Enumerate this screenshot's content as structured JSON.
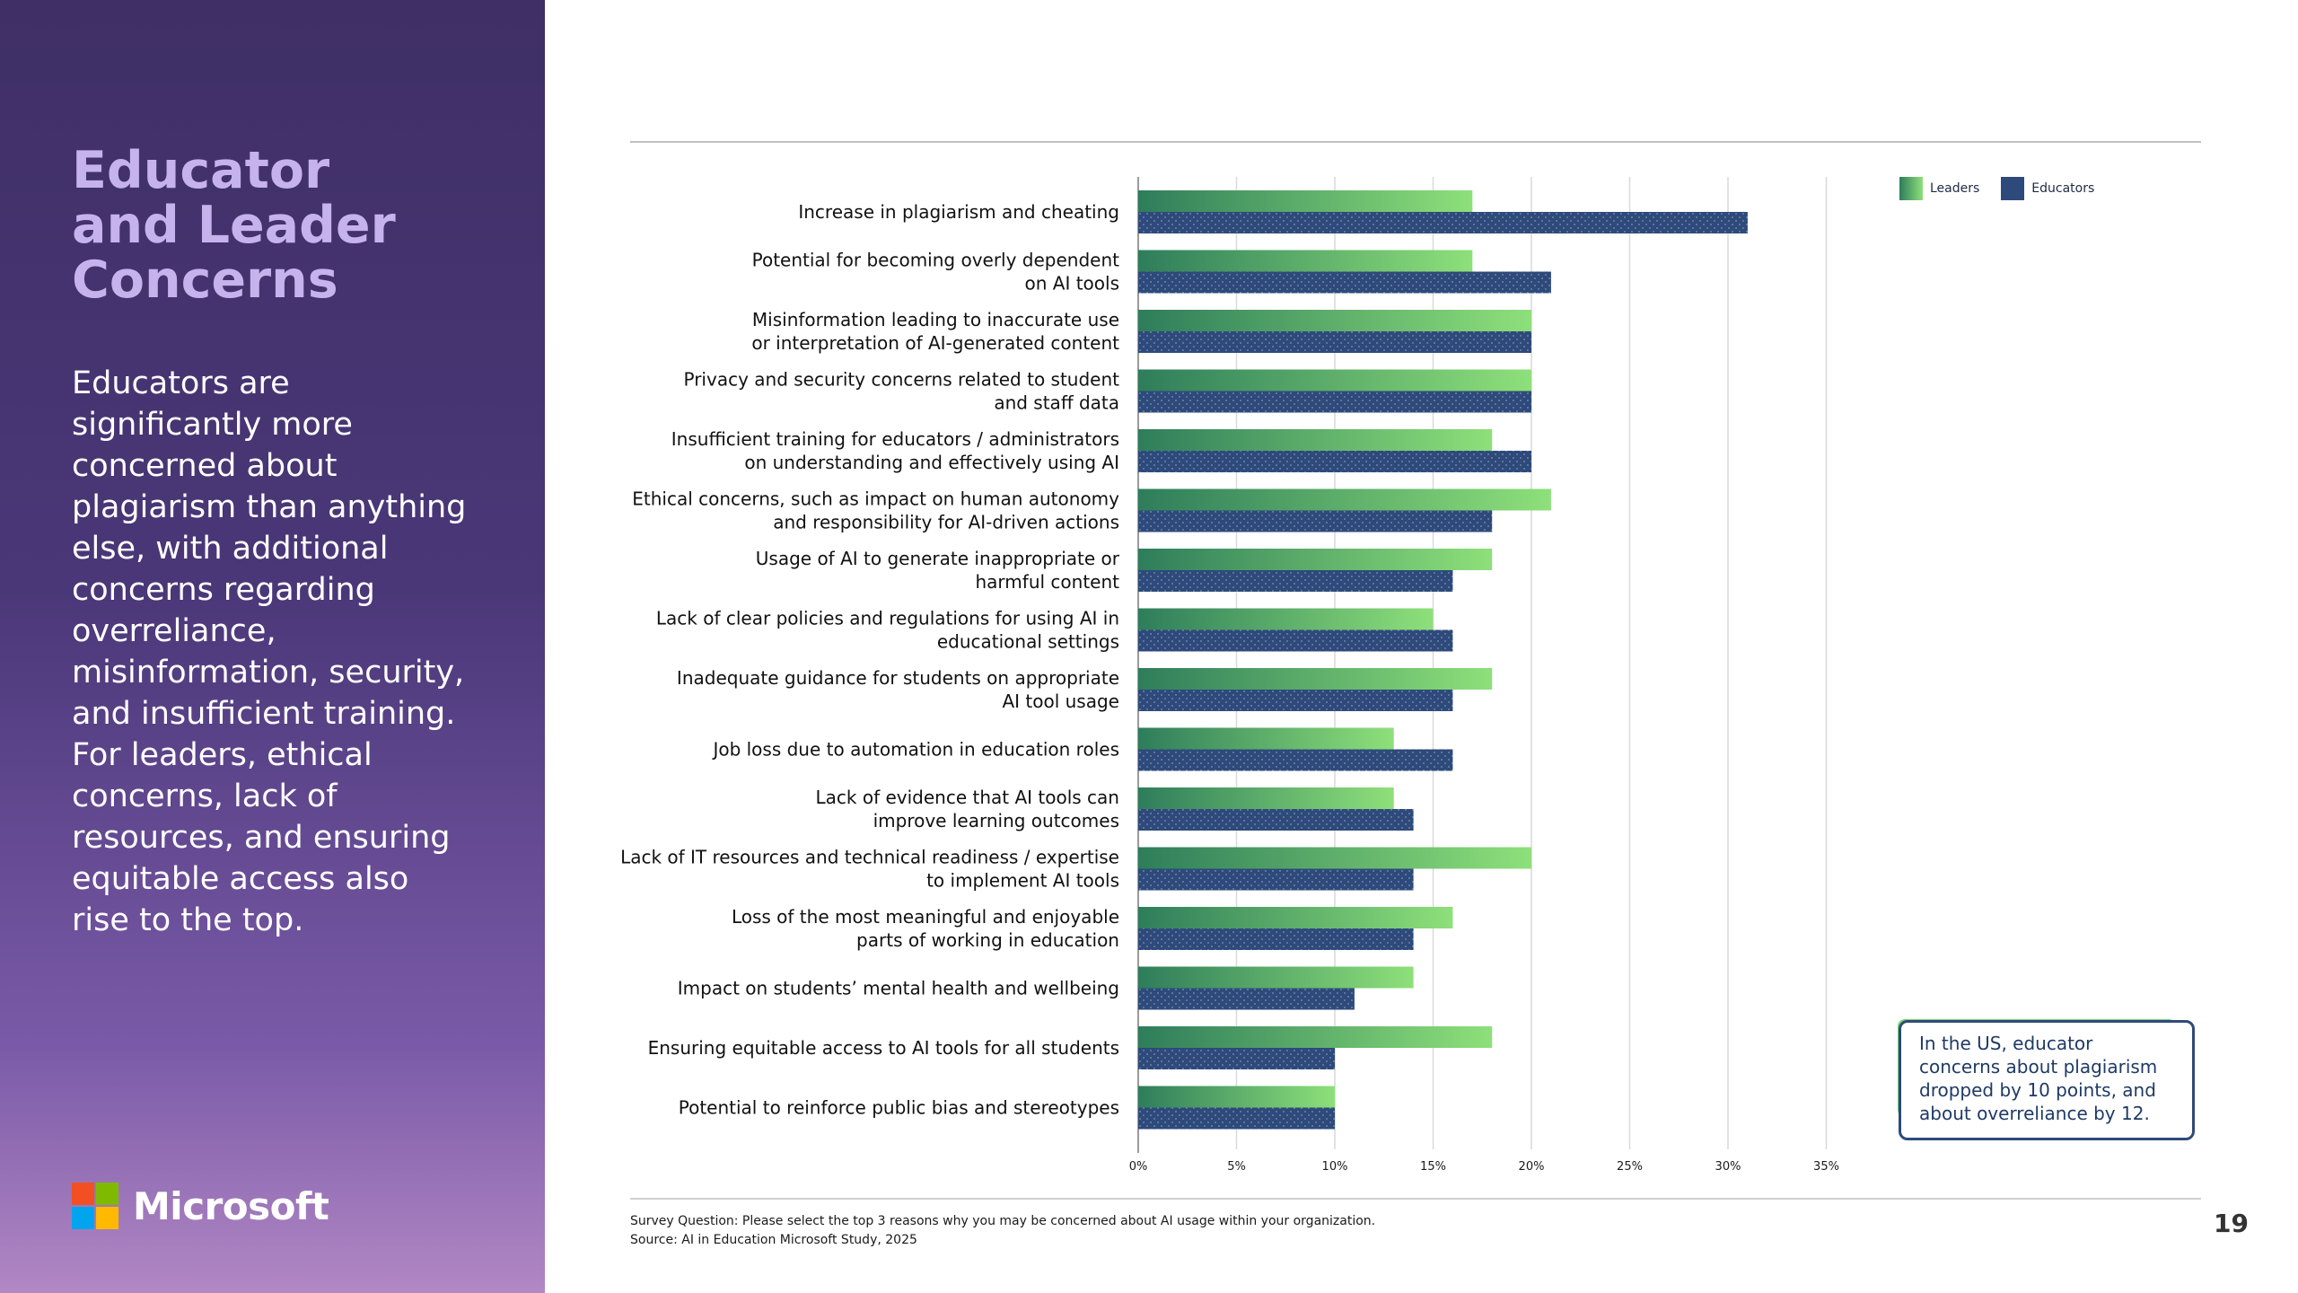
{
  "sidebar": {
    "title_lines": [
      "Educator",
      "and Leader",
      "Concerns"
    ],
    "body": "Educators are significantly more concerned about plagiarism than anything else, with additional concerns regarding overreliance, misinformation, security, and insufficient training. For leaders, ethical concerns, lack of resources, and ensuring equitable access also rise to the top.",
    "logo_text": "Microsoft",
    "logo_colors": [
      "#f25022",
      "#7fba00",
      "#00a4ef",
      "#ffb900"
    ]
  },
  "legend": {
    "leaders": "Leaders",
    "educators": "Educators"
  },
  "colors": {
    "leaders_start": "#2e7d5b",
    "leaders_end": "#8ee07a",
    "educators": "#2d4a7a",
    "grid": "#d9d9d9"
  },
  "chart_data": {
    "type": "bar",
    "orientation": "horizontal",
    "title": "",
    "xlabel": "",
    "ylabel": "",
    "xlim": [
      0,
      35
    ],
    "x_ticks": [
      0,
      5,
      10,
      15,
      20,
      25,
      30,
      35
    ],
    "x_tick_labels": [
      "0%",
      "5%",
      "10%",
      "15%",
      "20%",
      "25%",
      "30%",
      "35%"
    ],
    "categories": [
      "Increase in plagiarism and cheating",
      "Potential for becoming overly dependent\non AI tools",
      "Misinformation leading to inaccurate use\nor interpretation of AI-generated content",
      "Privacy and security concerns related to student\nand staff data",
      "Insufficient training for educators / administrators\non understanding and effectively using AI",
      "Ethical concerns, such as impact on human autonomy\nand responsibility for AI-driven actions",
      "Usage of AI to generate inappropriate or\nharmful content",
      "Lack of clear policies and regulations for using AI in\neducational settings",
      "Inadequate guidance for students on appropriate\nAI tool usage",
      "Job loss due to automation in education roles",
      "Lack of evidence that AI tools can\nimprove learning outcomes",
      "Lack of IT resources and technical readiness / expertise\nto implement AI tools",
      "Loss of the most meaningful and enjoyable\nparts of working in education",
      "Impact on students’ mental health and wellbeing",
      "Ensuring equitable access to AI tools for all students",
      "Potential to reinforce public bias and stereotypes"
    ],
    "series": [
      {
        "name": "Leaders",
        "values": [
          17,
          17,
          20,
          20,
          18,
          21,
          18,
          15,
          18,
          13,
          13,
          20,
          16,
          14,
          18,
          10
        ]
      },
      {
        "name": "Educators",
        "values": [
          31,
          21,
          20,
          20,
          20,
          18,
          16,
          16,
          16,
          16,
          14,
          14,
          14,
          11,
          10,
          10
        ]
      }
    ],
    "legend_position": "top-right",
    "grid": true
  },
  "note": "In the US, educator concerns about plagiarism dropped by 10 points, and about overreliance by 12.",
  "footnote": {
    "question": "Survey Question: Please select the top 3 reasons why you may be concerned about AI usage within your organization.",
    "source": "Source: AI in Education Microsoft Study, 2025"
  },
  "page_number": "19"
}
